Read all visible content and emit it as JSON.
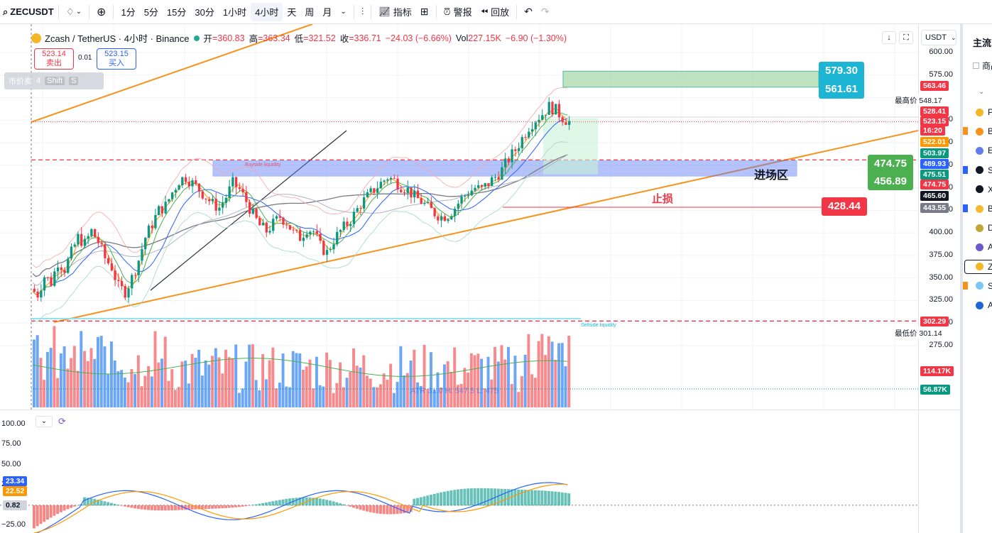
{
  "toolbar": {
    "symbol": "ZECUSDT",
    "intervals": [
      "1分",
      "5分",
      "15分",
      "30分",
      "1小时",
      "4小时",
      "天",
      "周",
      "月"
    ],
    "active_interval": "4小时",
    "indicators_label": "指标",
    "alert_label": "警报",
    "replay_label": "回放"
  },
  "legend": {
    "title": "Zcash / TetherUS · 4小时 · Binance",
    "open_label": "开",
    "open": "=360.83",
    "high_label": "高",
    "high": "=363.34",
    "low_label": "低",
    "low": "=321.52",
    "close_label": "收",
    "close": "=336.71",
    "change": "−24.03 (−6.66%)",
    "vol_label": "Vol",
    "vol": "227.15K",
    "vol_change": "−6.90 (−1.30%)"
  },
  "order": {
    "sell_price": "523.14",
    "sell_label": "卖出",
    "spread": "0.01",
    "buy_price": "523.15",
    "buy_label": "买入",
    "tool_label": "市价卖",
    "tool_qty": "4",
    "tool_key1": "Shift",
    "tool_key2": "S"
  },
  "axis": {
    "currency": "USDT",
    "ticks": [
      "600.00",
      "575.00",
      "525.00",
      "500.00",
      "475.00",
      "450.00",
      "425.00",
      "400.00",
      "375.00",
      "350.00",
      "325.00",
      "300.00",
      "275.00"
    ],
    "high_label": "最高价",
    "high_value": "548.17",
    "low_label": "最低价",
    "low_value": "301.14",
    "tags": [
      {
        "text": "563.46",
        "color": "#f23645"
      },
      {
        "text": "528.41",
        "color": "#f23645"
      },
      {
        "text": "523.15",
        "color": "#f23645"
      },
      {
        "text": "16:20",
        "color": "#f23645"
      },
      {
        "text": "522.01",
        "color": "#ff9800"
      },
      {
        "text": "503.97",
        "color": "#089981"
      },
      {
        "text": "489.93",
        "color": "#2962ff"
      },
      {
        "text": "475.51",
        "color": "#089981"
      },
      {
        "text": "474.75",
        "color": "#f23645"
      },
      {
        "text": "465.60",
        "color": "#131722"
      },
      {
        "text": "443.55",
        "color": "#787b86"
      },
      {
        "text": "302.29",
        "color": "#f23645"
      },
      {
        "text": "114.17K",
        "color": "#f23645"
      },
      {
        "text": "56.87K",
        "color": "#089981"
      }
    ]
  },
  "annotations": {
    "target_high": "579.30",
    "target_low": "561.61",
    "entry_high": "474.75",
    "entry_low": "456.89",
    "entry_label": "进场区",
    "stop_label": "止损",
    "stop_value": "428.44",
    "buyside_label": "Buyside liquidity",
    "sellside_label": "Sellside liquidity",
    "atr_label": "ATR 31.0 H: 547.5 L: 475"
  },
  "sub": {
    "ticks": [
      "100.00",
      "75.00",
      "50.00",
      "25.00",
      "0.00",
      "−25.00"
    ],
    "tag_blue": "23.34",
    "tag_orange": "22.52",
    "tag_zero": "0.82"
  },
  "sidebar": {
    "title": "主流币",
    "subtitle": "商品代码",
    "items": [
      "P",
      "B",
      "E",
      "S",
      "X",
      "B",
      "D",
      "A",
      "Z",
      "S",
      "A"
    ]
  },
  "colors": {
    "up": "#089981",
    "down": "#f23645",
    "accent": "#2962ff",
    "trend": "#f7931a"
  },
  "chart_data": {
    "type": "candlestick",
    "symbol": "ZECUSDT",
    "interval": "4小时",
    "ylim": [
      275,
      610
    ],
    "close_path": [
      338,
      332,
      352,
      345,
      368,
      360,
      378,
      395,
      388,
      402,
      390,
      372,
      362,
      340,
      335,
      350,
      370,
      395,
      410,
      425,
      430,
      445,
      458,
      462,
      455,
      448,
      440,
      432,
      428,
      440,
      455,
      448,
      435,
      420,
      408,
      402,
      410,
      418,
      412,
      400,
      395,
      405,
      402,
      385,
      378,
      392,
      402,
      410,
      420,
      432,
      440,
      448,
      455,
      462,
      458,
      452,
      448,
      440,
      435,
      428,
      422,
      418,
      420,
      428,
      438,
      445,
      450,
      448,
      455,
      462,
      470,
      482,
      492,
      505,
      518,
      526,
      532,
      540,
      536,
      528,
      523
    ],
    "last": "523.15"
  }
}
